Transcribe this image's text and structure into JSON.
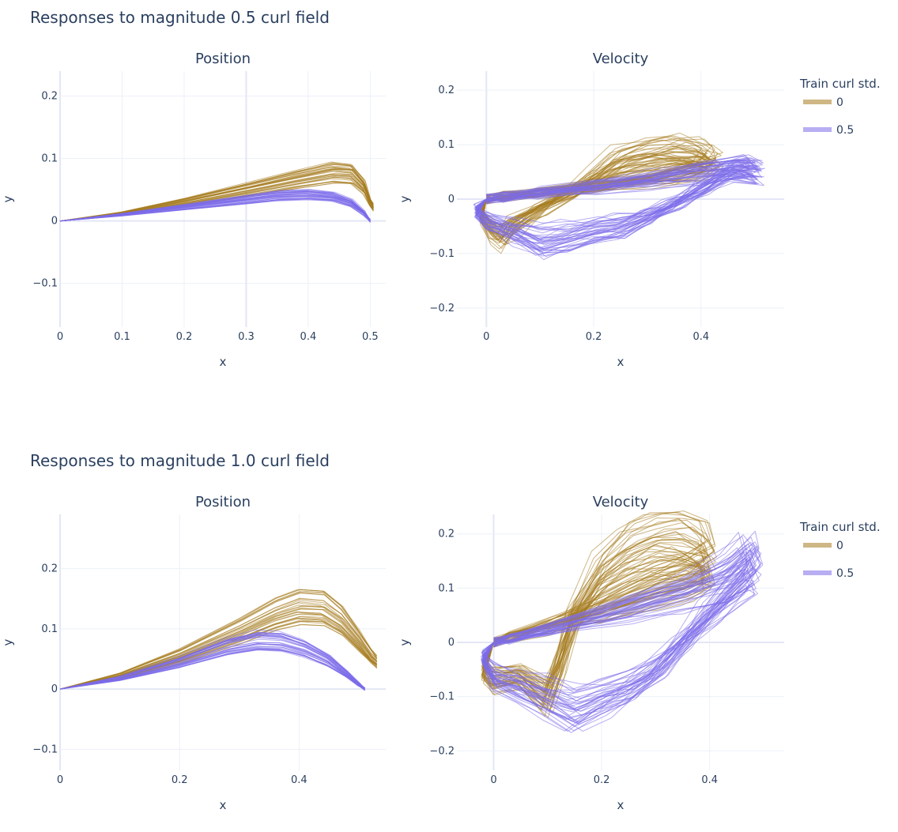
{
  "figure": {
    "legend_title": "Train curl std.",
    "series_styles": [
      {
        "name": "0",
        "color": "#A67C1F"
      },
      {
        "name": "0.5",
        "color": "#7B6BEA"
      }
    ]
  },
  "chart_data": [
    {
      "type": "line",
      "title": "Responses to magnitude 0.5 curl field",
      "subtitle": "Position",
      "xlabel": "x",
      "ylabel": "y",
      "xlim": [
        0,
        0.525
      ],
      "ylim": [
        -0.17,
        0.24
      ],
      "xticks": [
        0,
        0.1,
        0.2,
        0.3,
        0.4,
        0.5
      ],
      "xtick_labels": [
        "0",
        "0.1",
        "0.2",
        "0.3",
        "0.4",
        "0.5"
      ],
      "yticks": [
        -0.1,
        0,
        0.1,
        0.2
      ],
      "ytick_labels": [
        "−0.1",
        "0",
        "0.1",
        "0.2"
      ],
      "grid": true,
      "legend": "none",
      "series": [
        {
          "name": "0",
          "color": "#A67C1F",
          "opacity": 0.55,
          "x": [
            0,
            0.1,
            0.2,
            0.3,
            0.38,
            0.44,
            0.47,
            0.49,
            0.5,
            0.505
          ],
          "y": [
            0,
            0.012,
            0.03,
            0.05,
            0.067,
            0.078,
            0.076,
            0.055,
            0.03,
            0.022
          ]
        },
        {
          "name": "0.5",
          "color": "#7B6BEA",
          "opacity": 0.55,
          "x": [
            0,
            0.1,
            0.2,
            0.3,
            0.35,
            0.4,
            0.44,
            0.47,
            0.49,
            0.5
          ],
          "y": [
            0,
            0.01,
            0.022,
            0.034,
            0.04,
            0.042,
            0.038,
            0.028,
            0.012,
            0.0
          ]
        }
      ]
    },
    {
      "type": "line",
      "title": "",
      "subtitle": "Velocity",
      "xlabel": "x",
      "ylabel": "y",
      "xlim": [
        -0.055,
        0.555
      ],
      "ylim": [
        -0.235,
        0.235
      ],
      "xticks": [
        0,
        0.2,
        0.4
      ],
      "xtick_labels": [
        "0",
        "0.2",
        "0.4"
      ],
      "yticks": [
        -0.2,
        -0.1,
        0,
        0.1,
        0.2
      ],
      "ytick_labels": [
        "−0.2",
        "−0.1",
        "0",
        "0.1",
        "0.2"
      ],
      "grid": true,
      "legend": "right",
      "series": [
        {
          "name": "0",
          "color": "#A67C1F",
          "opacity": 0.55,
          "x": [
            0,
            -0.01,
            0.01,
            0.03,
            0.05,
            0.1,
            0.15,
            0.2,
            0.25,
            0.3,
            0.35,
            0.4,
            0.42,
            0.4,
            0.35,
            0.3,
            0.2,
            0.1,
            0.03,
            0
          ],
          "y": [
            0,
            -0.03,
            -0.06,
            -0.07,
            -0.05,
            -0.02,
            0.01,
            0.04,
            0.07,
            0.085,
            0.09,
            0.085,
            0.07,
            0.06,
            0.05,
            0.04,
            0.025,
            0.012,
            0.005,
            0
          ]
        },
        {
          "name": "0.5",
          "color": "#7B6BEA",
          "opacity": 0.55,
          "x": [
            0,
            -0.02,
            0.0,
            0.05,
            0.1,
            0.15,
            0.2,
            0.25,
            0.3,
            0.35,
            0.4,
            0.45,
            0.5,
            0.48,
            0.4,
            0.3,
            0.2,
            0.1,
            0.03,
            0
          ],
          "y": [
            0,
            -0.02,
            -0.04,
            -0.06,
            -0.08,
            -0.07,
            -0.06,
            -0.05,
            -0.03,
            -0.01,
            0.02,
            0.05,
            0.05,
            0.06,
            0.05,
            0.035,
            0.022,
            0.012,
            0.004,
            0
          ]
        }
      ]
    },
    {
      "type": "line",
      "title": "Responses to magnitude 1.0 curl field",
      "subtitle": "Position",
      "xlabel": "x",
      "ylabel": "y",
      "xlim": [
        0,
        0.545
      ],
      "ylim": [
        -0.135,
        0.29
      ],
      "xticks": [
        0,
        0.2,
        0.4
      ],
      "xtick_labels": [
        "0",
        "0.2",
        "0.4"
      ],
      "yticks": [
        -0.1,
        0,
        0.1,
        0.2
      ],
      "ytick_labels": [
        "−0.1",
        "0",
        "0.1",
        "0.2"
      ],
      "grid": true,
      "legend": "none",
      "series": [
        {
          "name": "0",
          "color": "#A67C1F",
          "opacity": 0.55,
          "x": [
            0,
            0.1,
            0.2,
            0.3,
            0.36,
            0.4,
            0.44,
            0.47,
            0.5,
            0.52,
            0.53
          ],
          "y": [
            0,
            0.022,
            0.055,
            0.097,
            0.125,
            0.138,
            0.135,
            0.115,
            0.08,
            0.055,
            0.045
          ]
        },
        {
          "name": "0.5",
          "color": "#7B6BEA",
          "opacity": 0.55,
          "x": [
            0,
            0.1,
            0.2,
            0.28,
            0.33,
            0.37,
            0.41,
            0.45,
            0.48,
            0.5,
            0.51
          ],
          "y": [
            0,
            0.018,
            0.045,
            0.072,
            0.082,
            0.08,
            0.068,
            0.048,
            0.025,
            0.008,
            0.0
          ]
        }
      ]
    },
    {
      "type": "line",
      "title": "",
      "subtitle": "Velocity",
      "xlabel": "x",
      "ylabel": "y",
      "xlim": [
        -0.068,
        0.538
      ],
      "ylim": [
        -0.236,
        0.236
      ],
      "xticks": [
        0,
        0.2,
        0.4
      ],
      "xtick_labels": [
        "0",
        "0.2",
        "0.4"
      ],
      "yticks": [
        -0.2,
        -0.1,
        0,
        0.1,
        0.2
      ],
      "ytick_labels": [
        "−0.2",
        "−0.1",
        "0",
        "0.1",
        "0.2"
      ],
      "grid": true,
      "legend": "right",
      "series": [
        {
          "name": "0",
          "color": "#A67C1F",
          "opacity": 0.55,
          "x": [
            0,
            -0.02,
            0.0,
            0.05,
            0.1,
            0.12,
            0.15,
            0.2,
            0.25,
            0.3,
            0.35,
            0.39,
            0.4,
            0.36,
            0.3,
            0.2,
            0.1,
            0.03,
            0
          ],
          "y": [
            0,
            -0.05,
            -0.07,
            -0.06,
            -0.1,
            -0.05,
            0.05,
            0.12,
            0.16,
            0.18,
            0.18,
            0.165,
            0.14,
            0.12,
            0.1,
            0.06,
            0.03,
            0.01,
            0
          ]
        },
        {
          "name": "0.5",
          "color": "#7B6BEA",
          "opacity": 0.55,
          "x": [
            0,
            -0.02,
            0.0,
            0.05,
            0.1,
            0.15,
            0.2,
            0.25,
            0.3,
            0.35,
            0.4,
            0.45,
            0.48,
            0.47,
            0.43,
            0.35,
            0.25,
            0.1,
            0.03,
            0
          ],
          "y": [
            0,
            -0.03,
            -0.06,
            -0.08,
            -0.1,
            -0.12,
            -0.1,
            -0.08,
            -0.05,
            0.0,
            0.05,
            0.1,
            0.13,
            0.15,
            0.12,
            0.09,
            0.06,
            0.022,
            0.006,
            0
          ]
        }
      ]
    }
  ]
}
